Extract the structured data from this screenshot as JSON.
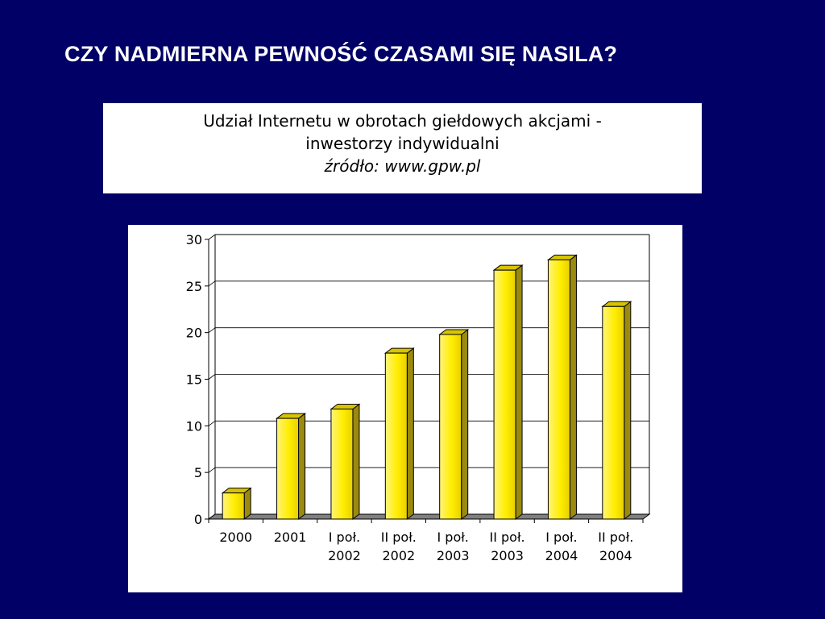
{
  "slide": {
    "title": "CZY NADMIERNA PEWNOŚĆ CZASAMI SIĘ NASILA?"
  },
  "caption": {
    "line1": "Udział Internetu w obrotach giełdowych akcjami -",
    "line2": "inwestorzy indywidualni",
    "source": "źródło: www.gpw.pl"
  },
  "colors": {
    "background": "#000066",
    "bar_front": "#ffee00",
    "bar_side": "#9a8a10",
    "bar_top": "#d8c400"
  },
  "chart_data": {
    "type": "bar",
    "categories": [
      [
        "2000"
      ],
      [
        "2001"
      ],
      [
        "I poł.",
        "2002"
      ],
      [
        "II poł.",
        "2002"
      ],
      [
        "I poł.",
        "2003"
      ],
      [
        "II poł.",
        "2003"
      ],
      [
        "I poł.",
        "2004"
      ],
      [
        "II poł.",
        "2004"
      ]
    ],
    "values": [
      2.8,
      10.8,
      11.8,
      17.8,
      19.8,
      26.7,
      27.8,
      22.8
    ],
    "title": "",
    "xlabel": "",
    "ylabel": "",
    "ylim": [
      0,
      30
    ],
    "yticks": [
      0,
      5,
      10,
      15,
      20,
      25,
      30
    ],
    "grid": true,
    "style": "3d-bar"
  }
}
